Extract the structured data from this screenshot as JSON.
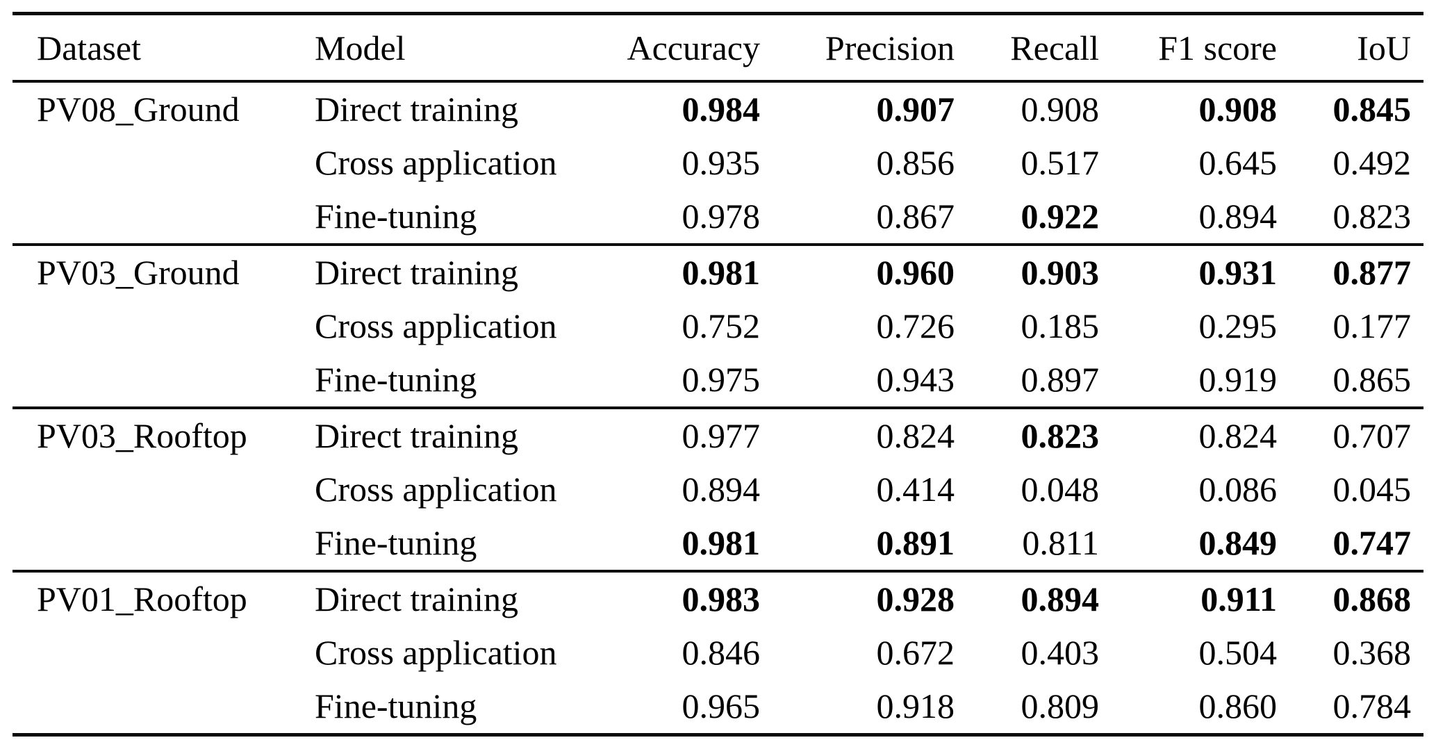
{
  "table": {
    "columns": [
      {
        "label": "Dataset",
        "align": "left"
      },
      {
        "label": "Model",
        "align": "left"
      },
      {
        "label": "Accuracy",
        "align": "right"
      },
      {
        "label": "Precision",
        "align": "right"
      },
      {
        "label": "Recall",
        "align": "right"
      },
      {
        "label": "F1 score",
        "align": "right"
      },
      {
        "label": "IoU",
        "align": "right"
      }
    ],
    "groups": [
      {
        "dataset": "PV08_Ground",
        "rows": [
          {
            "model": "Direct training",
            "values": [
              {
                "v": "0.984",
                "b": true
              },
              {
                "v": "0.907",
                "b": true
              },
              {
                "v": "0.908",
                "b": false
              },
              {
                "v": "0.908",
                "b": true
              },
              {
                "v": "0.845",
                "b": true
              }
            ]
          },
          {
            "model": "Cross application",
            "values": [
              {
                "v": "0.935",
                "b": false
              },
              {
                "v": "0.856",
                "b": false
              },
              {
                "v": "0.517",
                "b": false
              },
              {
                "v": "0.645",
                "b": false
              },
              {
                "v": "0.492",
                "b": false
              }
            ]
          },
          {
            "model": "Fine-tuning",
            "values": [
              {
                "v": "0.978",
                "b": false
              },
              {
                "v": "0.867",
                "b": false
              },
              {
                "v": "0.922",
                "b": true
              },
              {
                "v": "0.894",
                "b": false
              },
              {
                "v": "0.823",
                "b": false
              }
            ]
          }
        ]
      },
      {
        "dataset": "PV03_Ground",
        "rows": [
          {
            "model": "Direct training",
            "values": [
              {
                "v": "0.981",
                "b": true
              },
              {
                "v": "0.960",
                "b": true
              },
              {
                "v": "0.903",
                "b": true
              },
              {
                "v": "0.931",
                "b": true
              },
              {
                "v": "0.877",
                "b": true
              }
            ]
          },
          {
            "model": "Cross application",
            "values": [
              {
                "v": "0.752",
                "b": false
              },
              {
                "v": "0.726",
                "b": false
              },
              {
                "v": "0.185",
                "b": false
              },
              {
                "v": "0.295",
                "b": false
              },
              {
                "v": "0.177",
                "b": false
              }
            ]
          },
          {
            "model": "Fine-tuning",
            "values": [
              {
                "v": "0.975",
                "b": false
              },
              {
                "v": "0.943",
                "b": false
              },
              {
                "v": "0.897",
                "b": false
              },
              {
                "v": "0.919",
                "b": false
              },
              {
                "v": "0.865",
                "b": false
              }
            ]
          }
        ]
      },
      {
        "dataset": "PV03_Rooftop",
        "rows": [
          {
            "model": "Direct training",
            "values": [
              {
                "v": "0.977",
                "b": false
              },
              {
                "v": "0.824",
                "b": false
              },
              {
                "v": "0.823",
                "b": true
              },
              {
                "v": "0.824",
                "b": false
              },
              {
                "v": "0.707",
                "b": false
              }
            ]
          },
          {
            "model": "Cross application",
            "values": [
              {
                "v": "0.894",
                "b": false
              },
              {
                "v": "0.414",
                "b": false
              },
              {
                "v": "0.048",
                "b": false
              },
              {
                "v": "0.086",
                "b": false
              },
              {
                "v": "0.045",
                "b": false
              }
            ]
          },
          {
            "model": "Fine-tuning",
            "values": [
              {
                "v": "0.981",
                "b": true
              },
              {
                "v": "0.891",
                "b": true
              },
              {
                "v": "0.811",
                "b": false
              },
              {
                "v": "0.849",
                "b": true
              },
              {
                "v": "0.747",
                "b": true
              }
            ]
          }
        ]
      },
      {
        "dataset": "PV01_Rooftop",
        "rows": [
          {
            "model": "Direct training",
            "values": [
              {
                "v": "0.983",
                "b": true
              },
              {
                "v": "0.928",
                "b": true
              },
              {
                "v": "0.894",
                "b": true
              },
              {
                "v": "0.911",
                "b": true
              },
              {
                "v": "0.868",
                "b": true
              }
            ]
          },
          {
            "model": "Cross application",
            "values": [
              {
                "v": "0.846",
                "b": false
              },
              {
                "v": "0.672",
                "b": false
              },
              {
                "v": "0.403",
                "b": false
              },
              {
                "v": "0.504",
                "b": false
              },
              {
                "v": "0.368",
                "b": false
              }
            ]
          },
          {
            "model": "Fine-tuning",
            "values": [
              {
                "v": "0.965",
                "b": false
              },
              {
                "v": "0.918",
                "b": false
              },
              {
                "v": "0.809",
                "b": false
              },
              {
                "v": "0.860",
                "b": false
              },
              {
                "v": "0.784",
                "b": false
              }
            ]
          }
        ]
      }
    ]
  }
}
